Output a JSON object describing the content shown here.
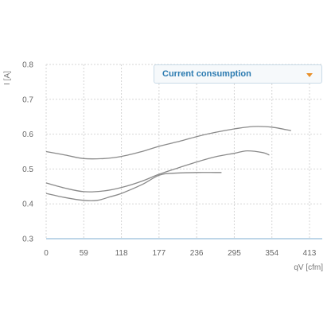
{
  "chart_data": {
    "type": "line",
    "xlabel": "qV [cfm]",
    "ylabel": "I [A]",
    "xlim": [
      0,
      413
    ],
    "ylim": [
      0.3,
      0.8
    ],
    "x_ticks": [
      "0",
      "59",
      "118",
      "177",
      "236",
      "295",
      "354",
      "413"
    ],
    "y_ticks": [
      "0.3",
      "0.4",
      "0.5",
      "0.6",
      "0.7",
      "0.8"
    ],
    "grid": true,
    "series": [
      {
        "points": [
          [
            0,
            0.55
          ],
          [
            30,
            0.54
          ],
          [
            59,
            0.53
          ],
          [
            90,
            0.53
          ],
          [
            118,
            0.536
          ],
          [
            150,
            0.55
          ],
          [
            177,
            0.565
          ],
          [
            210,
            0.58
          ],
          [
            236,
            0.593
          ],
          [
            265,
            0.605
          ],
          [
            295,
            0.615
          ],
          [
            325,
            0.622
          ],
          [
            354,
            0.62
          ],
          [
            384,
            0.61
          ]
        ]
      },
      {
        "points": [
          [
            0,
            0.46
          ],
          [
            30,
            0.445
          ],
          [
            59,
            0.435
          ],
          [
            90,
            0.437
          ],
          [
            118,
            0.447
          ],
          [
            150,
            0.465
          ],
          [
            177,
            0.485
          ],
          [
            210,
            0.505
          ],
          [
            236,
            0.52
          ],
          [
            265,
            0.535
          ],
          [
            295,
            0.545
          ],
          [
            315,
            0.552
          ],
          [
            340,
            0.547
          ],
          [
            350,
            0.54
          ]
        ]
      },
      {
        "points": [
          [
            0,
            0.43
          ],
          [
            30,
            0.418
          ],
          [
            59,
            0.41
          ],
          [
            80,
            0.41
          ],
          [
            100,
            0.42
          ],
          [
            118,
            0.43
          ],
          [
            150,
            0.455
          ],
          [
            177,
            0.482
          ],
          [
            200,
            0.488
          ],
          [
            236,
            0.49
          ],
          [
            265,
            0.49
          ],
          [
            275,
            0.49
          ]
        ]
      }
    ]
  },
  "legend_dropdown": {
    "selected": "Current consumption",
    "arrow_icon": "triangle-down-icon",
    "arrow_color": "#e8902a",
    "label_color": "#2a7ab0"
  }
}
